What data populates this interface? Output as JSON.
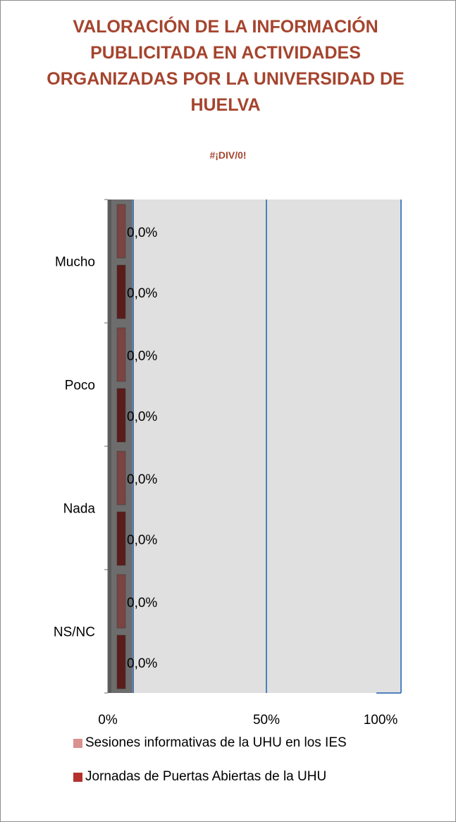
{
  "chart_data": {
    "type": "bar",
    "orientation": "horizontal",
    "title": "VALORACIÓN DE LA INFORMACIÓN PUBLICITADA EN ACTIVIDADES ORGANIZADAS POR LA UNIVERSIDAD DE HUELVA",
    "subtitle": "#¡DIV/0!",
    "categories": [
      "Mucho",
      "Poco",
      "Nada",
      "NS/NC"
    ],
    "series": [
      {
        "name": "Sesiones informativas de la UHU en los IES",
        "values": [
          0,
          0,
          0,
          0
        ],
        "labels": [
          "0,0%",
          "0,0%",
          "0,0%",
          "0,0%"
        ],
        "color": "#c0504d"
      },
      {
        "name": "Jornadas de Puertas Abiertas de la UHU",
        "values": [
          0,
          0,
          0,
          0
        ],
        "labels": [
          "0,0%",
          "0,0%",
          "0,0%",
          "0,0%"
        ],
        "color": "#943634"
      }
    ],
    "x_ticks": [
      "0%",
      "50%",
      "100%"
    ],
    "xlim": [
      0,
      100
    ],
    "x_unit": "percent",
    "grid": true,
    "legend_position": "bottom",
    "plot_background": "#e0e0e0",
    "gridline_color": "#4f81bd",
    "title_color": "#a5442e"
  }
}
